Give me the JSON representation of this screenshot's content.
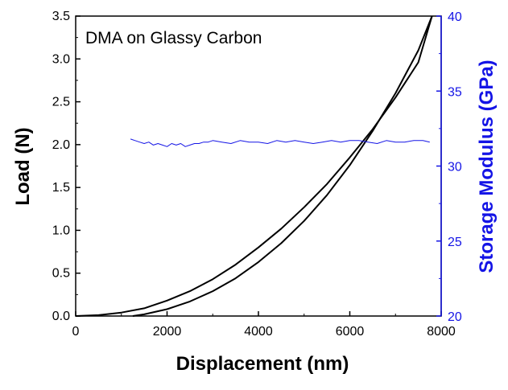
{
  "chart_data": {
    "type": "line",
    "title": "DMA on Glassy Carbon",
    "xlabel": "Displacement (nm)",
    "ylabel": "Load (N)",
    "y2label": "Storage Modulus (GPa)",
    "xlim": [
      0,
      8000
    ],
    "ylim": [
      0,
      3.5
    ],
    "y2lim": [
      20,
      40
    ],
    "xticks": [
      0,
      2000,
      4000,
      6000,
      8000
    ],
    "yticks": [
      0.0,
      0.5,
      1.0,
      1.5,
      2.0,
      2.5,
      3.0,
      3.5
    ],
    "y2ticks": [
      20,
      25,
      30,
      35,
      40
    ],
    "grid": false,
    "colors": {
      "load": "#000000",
      "modulus": "#1414e6",
      "right_axis": "#1414e6"
    },
    "series": [
      {
        "axis": "left",
        "x": [
          0,
          500,
          1000,
          1500,
          2000,
          2500,
          3000,
          3500,
          4000,
          4500,
          5000,
          5500,
          6000,
          6500,
          7000,
          7500,
          7800
        ],
        "y": [
          0.0,
          0.01,
          0.04,
          0.09,
          0.18,
          0.29,
          0.43,
          0.6,
          0.8,
          1.02,
          1.27,
          1.54,
          1.85,
          2.18,
          2.55,
          2.96,
          3.5
        ]
      },
      {
        "axis": "left",
        "x": [
          1250,
          1500,
          2000,
          2500,
          3000,
          3500,
          4000,
          4500,
          5000,
          5500,
          6000,
          6500,
          7000,
          7500,
          7800
        ],
        "y": [
          0.0,
          0.02,
          0.08,
          0.17,
          0.29,
          0.44,
          0.63,
          0.85,
          1.11,
          1.41,
          1.76,
          2.16,
          2.6,
          3.1,
          3.5
        ]
      },
      {
        "axis": "right",
        "x": [
          1200,
          1300,
          1400,
          1500,
          1600,
          1700,
          1800,
          1900,
          2000,
          2100,
          2200,
          2300,
          2400,
          2500,
          2600,
          2700,
          2800,
          2900,
          3000,
          3200,
          3400,
          3600,
          3800,
          4000,
          4200,
          4400,
          4600,
          4800,
          5000,
          5200,
          5400,
          5600,
          5800,
          6000,
          6200,
          6400,
          6600,
          6800,
          7000,
          7200,
          7400,
          7600,
          7750
        ],
        "y": [
          31.8,
          31.7,
          31.6,
          31.5,
          31.6,
          31.4,
          31.5,
          31.4,
          31.3,
          31.5,
          31.4,
          31.5,
          31.3,
          31.4,
          31.5,
          31.5,
          31.6,
          31.6,
          31.7,
          31.6,
          31.5,
          31.7,
          31.6,
          31.6,
          31.5,
          31.7,
          31.6,
          31.7,
          31.6,
          31.5,
          31.6,
          31.7,
          31.6,
          31.7,
          31.7,
          31.6,
          31.5,
          31.7,
          31.6,
          31.6,
          31.7,
          31.7,
          31.6
        ]
      }
    ]
  }
}
